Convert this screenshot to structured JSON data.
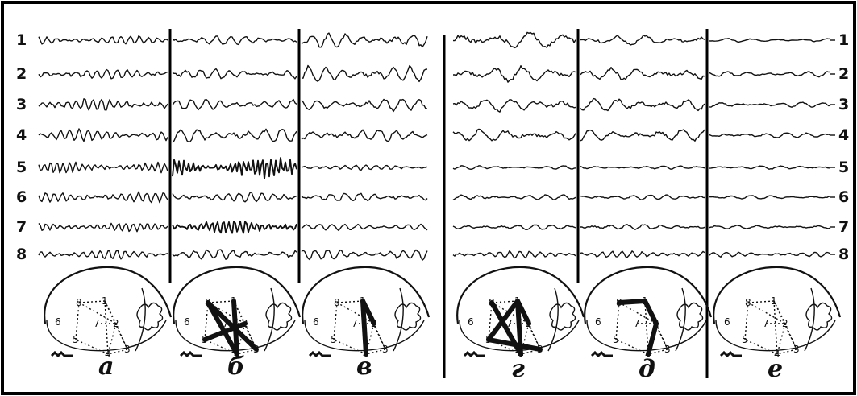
{
  "channels": [
    "1",
    "2",
    "3",
    "4",
    "5",
    "6",
    "7",
    "8"
  ],
  "panels": [
    {
      "label": "а",
      "heavy_channels": []
    },
    {
      "label": "б",
      "heavy_channels": [
        "5",
        "7"
      ]
    },
    {
      "label": "в",
      "heavy_channels": []
    },
    {
      "label": "г",
      "heavy_channels": []
    },
    {
      "label": "д",
      "heavy_channels": []
    },
    {
      "label": "е",
      "heavy_channels": []
    }
  ],
  "brain_nodes": [
    "1",
    "2",
    "3",
    "4",
    "5",
    "6",
    "7",
    "8"
  ]
}
